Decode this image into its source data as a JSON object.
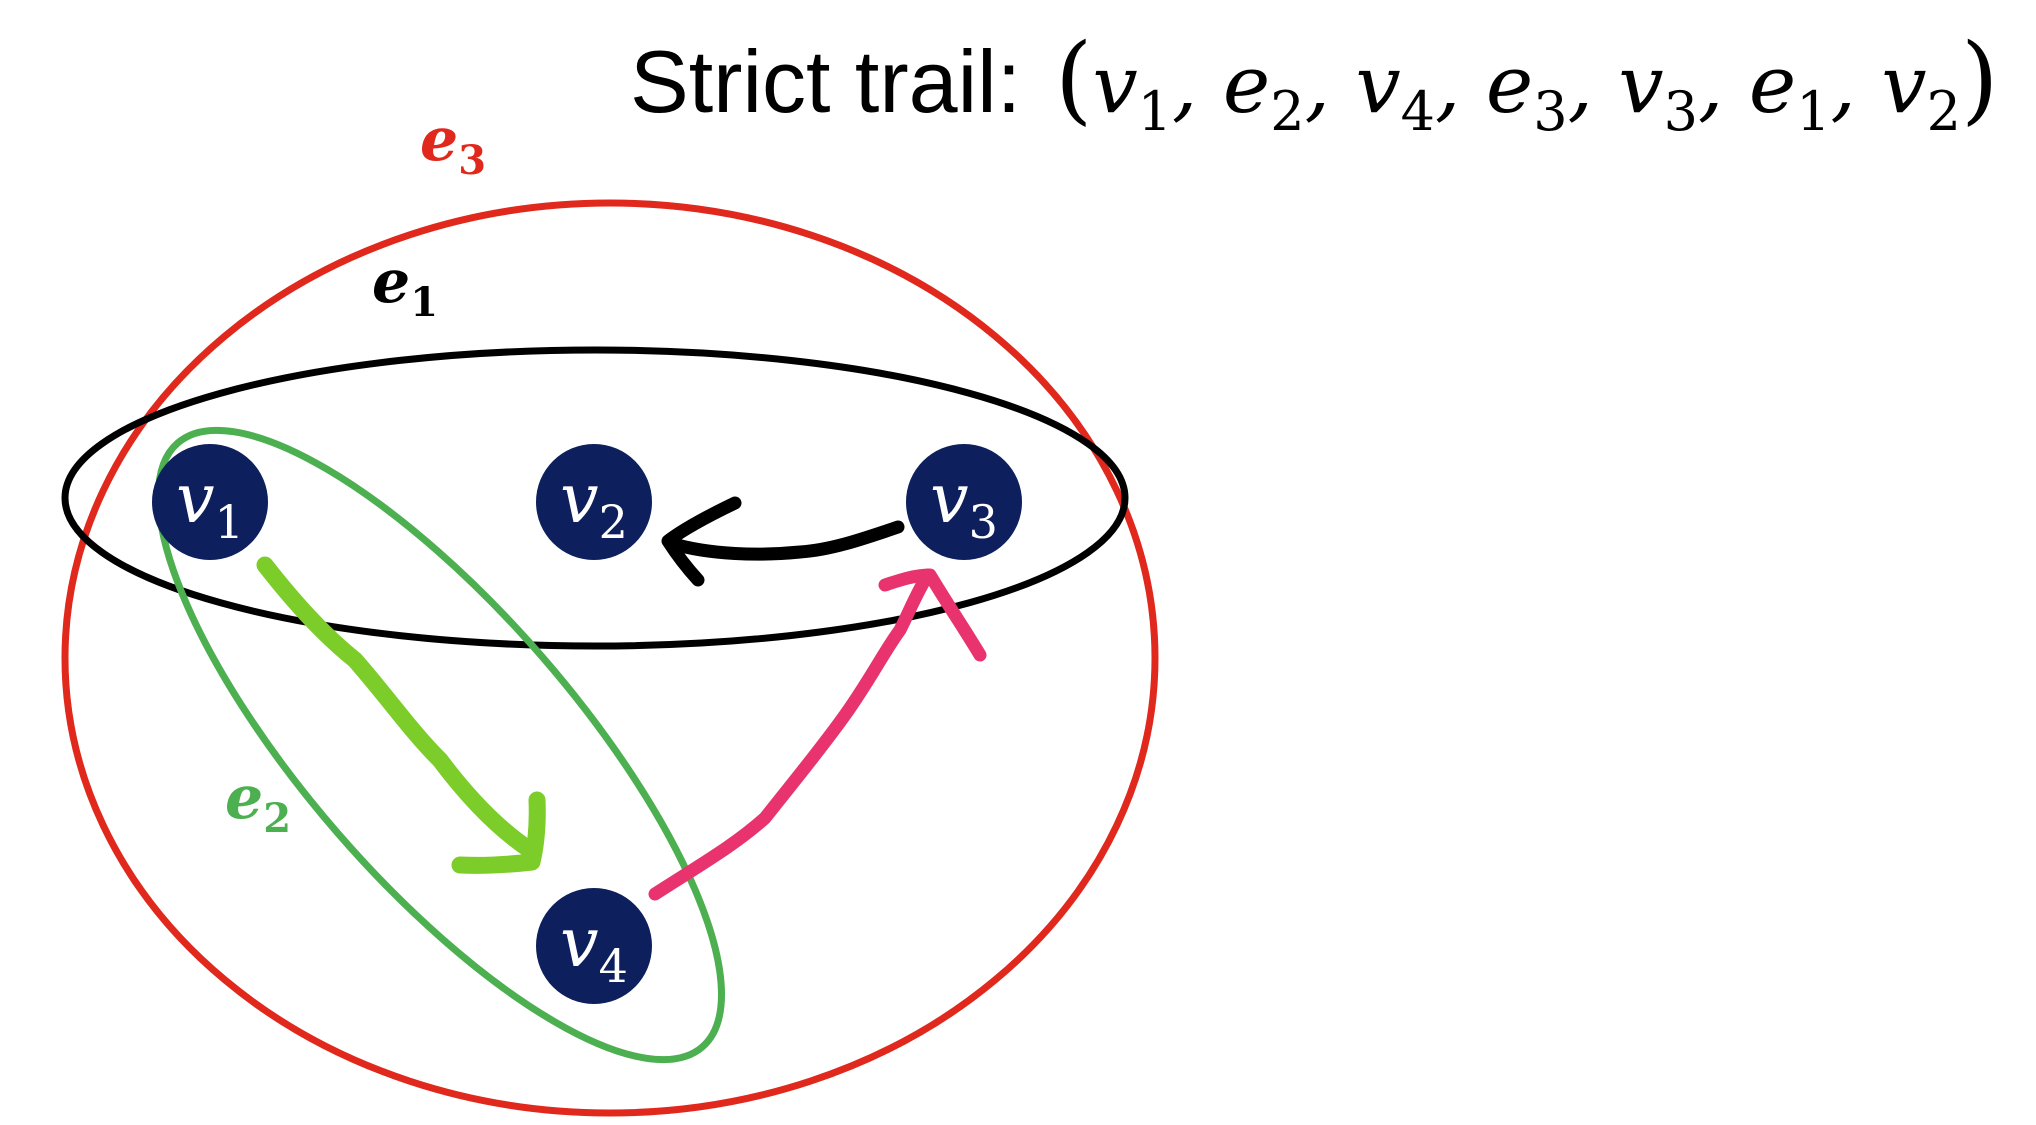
{
  "title": {
    "label": "Strict trail:",
    "open_paren": "(",
    "close_paren": ")",
    "separator": ",",
    "sequence": [
      {
        "base": "v",
        "sub": "1"
      },
      {
        "base": "e",
        "sub": "2"
      },
      {
        "base": "v",
        "sub": "4"
      },
      {
        "base": "e",
        "sub": "3"
      },
      {
        "base": "v",
        "sub": "3"
      },
      {
        "base": "e",
        "sub": "1"
      },
      {
        "base": "v",
        "sub": "2"
      }
    ]
  },
  "hyperedges": {
    "e1": {
      "base": "e",
      "sub": "1",
      "color": "#000000"
    },
    "e2": {
      "base": "e",
      "sub": "2",
      "color": "#4caf50"
    },
    "e3": {
      "base": "e",
      "sub": "3",
      "color": "#e0281c"
    }
  },
  "vertices": {
    "v1": {
      "base": "v",
      "sub": "1"
    },
    "v2": {
      "base": "v",
      "sub": "2"
    },
    "v3": {
      "base": "v",
      "sub": "3"
    },
    "v4": {
      "base": "v",
      "sub": "4"
    }
  },
  "vertex_color": "#0d1f5c",
  "vertex_text_color": "#ffffff",
  "arrows": [
    {
      "from": "v1",
      "to": "v4",
      "color": "#7ccc2a"
    },
    {
      "from": "v4",
      "to": "v3",
      "color": "#e8336e"
    },
    {
      "from": "v3",
      "to": "v2",
      "color": "#000000"
    }
  ]
}
